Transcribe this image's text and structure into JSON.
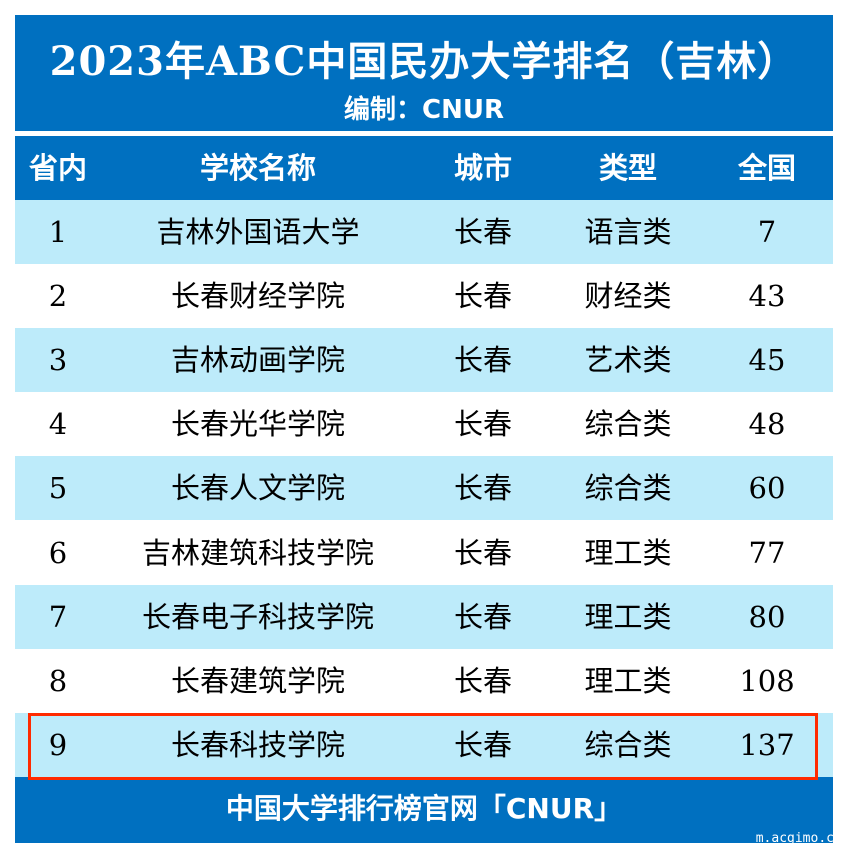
{
  "title": "2023年ABC中国民办大学排名（吉林）",
  "subtitle": "编制：CNUR",
  "headers": [
    "省内",
    "学校名称",
    "城市",
    "类型",
    "全国"
  ],
  "rows": [
    [
      "1",
      "吉林外国语大学",
      "长春",
      "语言类",
      "7"
    ],
    [
      "2",
      "长春财经学院",
      "长春",
      "财经类",
      "43"
    ],
    [
      "3",
      "吉林动画学院",
      "长春",
      "艺术类",
      "45"
    ],
    [
      "4",
      "长春光华学院",
      "长春",
      "综合类",
      "48"
    ],
    [
      "5",
      "长春人文学院",
      "长春",
      "综合类",
      "60"
    ],
    [
      "6",
      "吉林建筑科技学院",
      "长春",
      "理工类",
      "77"
    ],
    [
      "7",
      "长春电子科技学院",
      "长春",
      "理工类",
      "80"
    ],
    [
      "8",
      "长春建筑学院",
      "长春",
      "理工类",
      "108"
    ],
    [
      "9",
      "长春科技学院",
      "长春",
      "综合类",
      "137"
    ]
  ],
  "highlighted_row": 9,
  "footer": "中国大学排行榜官网「CNUR」",
  "watermark": "m.acgimo.c",
  "colors": {
    "header": "#0070C0",
    "stripe": "#BDEBFA",
    "highlight": "#FF2A00"
  }
}
